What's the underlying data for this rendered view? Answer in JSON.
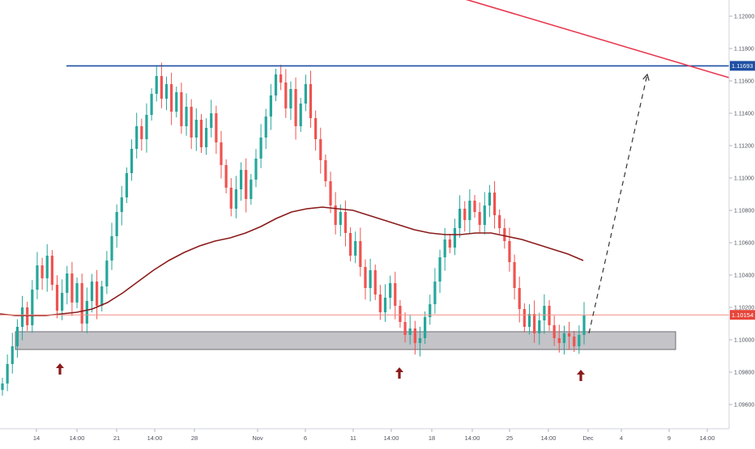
{
  "chart_data": {
    "type": "candlestick",
    "title": "",
    "xlabel": "",
    "ylabel": "",
    "ylim": [
      1.0945,
      1.121
    ],
    "y_ticks": [
      "1.12000",
      "1.11800",
      "1.11600",
      "1.11400",
      "1.11200",
      "1.11000",
      "1.10800",
      "1.10600",
      "1.10400",
      "1.10200",
      "1.10000",
      "1.09800",
      "1.09600"
    ],
    "x_ticks": [
      "14",
      "14:00",
      "21",
      "14:00",
      "28",
      "Nov",
      "6",
      "11",
      "14:00",
      "18",
      "14:00",
      "25",
      "14:00",
      "Dec",
      "4",
      "9",
      "14:00"
    ],
    "price_labels": {
      "resistance": {
        "value": 1.11693,
        "text": "1.11693",
        "color": "#1e4fa3"
      },
      "current": {
        "value": 1.10154,
        "text": "1.10154",
        "color": "#e8443a"
      }
    },
    "series": [
      {
        "kind": "close",
        "values": [
          1.0973,
          1.0985,
          1.0996,
          1.1008,
          1.102,
          1.1009,
          1.1031,
          1.1046,
          1.1038,
          1.1052,
          1.1034,
          1.1018,
          1.1029,
          1.1041,
          1.1023,
          1.1035,
          1.101,
          1.1024,
          1.1036,
          1.1021,
          1.1033,
          1.1049,
          1.1064,
          1.1079,
          1.1088,
          1.1103,
          1.1118,
          1.1132,
          1.1124,
          1.1139,
          1.1152,
          1.1163,
          1.1149,
          1.1158,
          1.1141,
          1.1153,
          1.1132,
          1.1144,
          1.1125,
          1.1136,
          1.1119,
          1.1131,
          1.114,
          1.1122,
          1.1108,
          1.1094,
          1.1081,
          1.1093,
          1.1105,
          1.1087,
          1.1099,
          1.1112,
          1.1125,
          1.1138,
          1.1151,
          1.1164,
          1.1159,
          1.1143,
          1.1155,
          1.1132,
          1.1146,
          1.1158,
          1.1137,
          1.1124,
          1.1111,
          1.1098,
          1.1083,
          1.1071,
          1.1079,
          1.1066,
          1.1052,
          1.1061,
          1.1045,
          1.1032,
          1.1043,
          1.1028,
          1.1017,
          1.1026,
          1.1035,
          1.1021,
          1.1011,
          1.1003,
          1.1007,
          1.0998,
          1.1001,
          1.1014,
          1.1022,
          1.1036,
          1.1051,
          1.1062,
          1.1057,
          1.1069,
          1.1081,
          1.1074,
          1.1086,
          1.1079,
          1.1071,
          1.1083,
          1.1091,
          1.1077,
          1.1069,
          1.1061,
          1.1048,
          1.1032,
          1.1019,
          1.1008,
          1.1016,
          1.1004,
          1.1012,
          1.1021,
          1.1009,
          1.1001,
          1.0998,
          1.1004,
          1.1002,
          1.0996,
          1.1003,
          1.1015
        ],
        "color_up": "#26a69a",
        "color_down": "#ef5350"
      },
      {
        "kind": "moving_average",
        "values": [
          1.1016,
          1.1015,
          1.1015,
          1.1015,
          1.1016,
          1.1017,
          1.1019,
          1.1023,
          1.1029,
          1.1036,
          1.1043,
          1.1049,
          1.1054,
          1.1058,
          1.1061,
          1.1063,
          1.1066,
          1.107,
          1.1075,
          1.1079,
          1.1081,
          1.1082,
          1.1081,
          1.108,
          1.1077,
          1.1074,
          1.1071,
          1.1068,
          1.1066,
          1.1065,
          1.1065,
          1.1066,
          1.1066,
          1.1064,
          1.1062,
          1.1059,
          1.1056,
          1.1053,
          1.1049
        ],
        "color": "#8b1a1a"
      }
    ],
    "annotations": [
      {
        "type": "hline",
        "name": "resistance",
        "y": 1.11693,
        "color": "#1e4fa3"
      },
      {
        "type": "hline",
        "name": "current-price",
        "y": 1.10154,
        "color": "#f28b82"
      },
      {
        "type": "trendline",
        "name": "descending-trendline",
        "y_start": 1.1222,
        "y_end": 1.1162,
        "color": "#e8384f"
      },
      {
        "type": "zone",
        "name": "support-zone",
        "y_low": 1.0994,
        "y_high": 1.1005,
        "color": "#b8b9be"
      },
      {
        "type": "projection",
        "name": "projection-arrow",
        "y_start": 1.1004,
        "y_end": 1.1164,
        "style": "dashed"
      },
      {
        "type": "arrow",
        "name": "up-arrow",
        "count": 3,
        "color": "#8b1a1a"
      }
    ],
    "grid": false,
    "legend": "none"
  }
}
